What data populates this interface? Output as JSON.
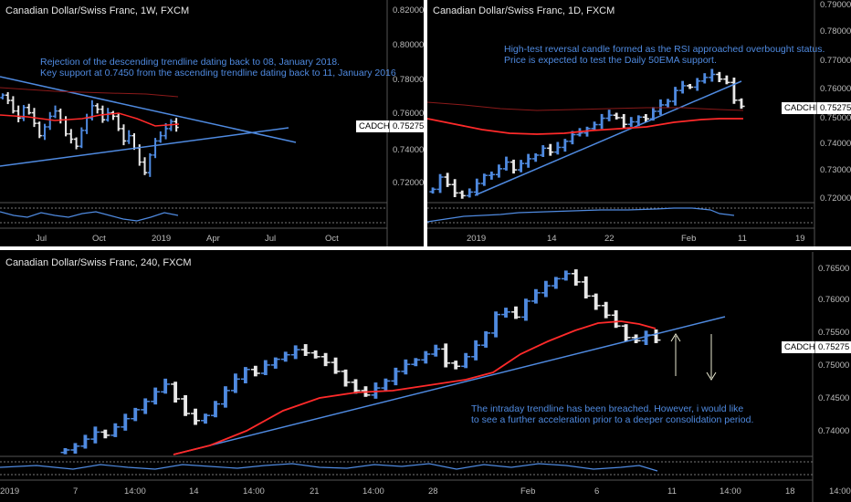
{
  "panels": {
    "weekly": {
      "title": "Canadian Dollar/Swiss Franc, 1W, FXCM",
      "note": "Rejection of the descending trendline dating back to 08, January 2018.\nKey support at 0.7450 from the ascending trendline dating back to 11, January 2016",
      "symbol": "CADCHF",
      "price": "0.75275",
      "y_ticks": [
        "0.82000",
        "0.80000",
        "0.78000",
        "0.76000",
        "0.74000",
        "0.72000"
      ],
      "x_ticks": [
        "Jul",
        "Oct",
        "2019",
        "Apr",
        "Jul",
        "Oct"
      ]
    },
    "daily": {
      "title": "Canadian Dollar/Swiss Franc, 1D, FXCM",
      "note": "High-test reversal candle formed as the RSI approached overbought status.\nPrice is expected to test the Daily 50EMA support.",
      "symbol": "CADCHF",
      "price": "0.75275",
      "y_ticks": [
        "0.79000",
        "0.78000",
        "0.77000",
        "0.76000",
        "0.75000",
        "0.74000",
        "0.73000",
        "0.72000"
      ],
      "x_ticks": [
        "2019",
        "14",
        "22",
        "Feb",
        "11",
        "19"
      ]
    },
    "h4": {
      "title": "Canadian Dollar/Swiss Franc, 240, FXCM",
      "note": "The intraday trendline has been breached. However, i would like\nto see a further acceleration prior to a deeper consolidation period.",
      "symbol": "CADCHF",
      "price": "0.75275",
      "y_ticks": [
        "0.76500",
        "0.76000",
        "0.75500",
        "0.75000",
        "0.74500",
        "0.74000"
      ],
      "x_ticks": [
        "2019",
        "7",
        "14:00",
        "14",
        "14:00",
        "21",
        "14:00",
        "28",
        "Feb",
        "6",
        "11",
        "14:00",
        "18",
        "14:00"
      ]
    }
  },
  "colors": {
    "bull": "#4f8ae0",
    "bear": "#e8e8e8",
    "trendline": "#4f8ae0",
    "ema": "#ff2a2a",
    "rsi": "#4f8ae0",
    "background": "#000000"
  },
  "chart_data": [
    {
      "type": "ohlc",
      "series": [
        {
          "name": "CADCHF",
          "close": [
            0.771,
            0.768,
            0.762,
            0.758,
            0.764,
            0.761,
            0.755,
            0.748,
            0.753,
            0.759,
            0.762,
            0.757,
            0.749,
            0.746,
            0.742,
            0.751,
            0.758,
            0.765,
            0.763,
            0.757,
            0.761,
            0.759,
            0.752,
            0.745,
            0.748,
            0.741,
            0.733,
            0.727,
            0.737,
            0.745,
            0.748,
            0.752,
            0.756,
            0.7527
          ]
        }
      ],
      "ylim": [
        0.71,
        0.825
      ]
    },
    {
      "type": "ohlc",
      "series": [
        {
          "name": "CADCHF",
          "close": [
            0.7228,
            0.7272,
            0.7245,
            0.7215,
            0.7205,
            0.7218,
            0.7249,
            0.7278,
            0.7281,
            0.7302,
            0.7326,
            0.7298,
            0.7321,
            0.7338,
            0.7351,
            0.7376,
            0.7362,
            0.7379,
            0.7401,
            0.7425,
            0.7431,
            0.7447,
            0.7461,
            0.7484,
            0.7495,
            0.7486,
            0.7462,
            0.7471,
            0.7488,
            0.7482,
            0.7509,
            0.7532,
            0.7545,
            0.7584,
            0.7601,
            0.7596,
            0.7618,
            0.7631,
            0.7642,
            0.7625,
            0.7613,
            0.7549,
            0.7527
          ]
        }
      ],
      "ylim": [
        0.718,
        0.791
      ]
    },
    {
      "type": "ohlc",
      "series": [
        {
          "name": "CADCHF",
          "close": [
            0.7355,
            0.7361,
            0.7372,
            0.7383,
            0.7378,
            0.7391,
            0.7404,
            0.7418,
            0.7431,
            0.7446,
            0.7458,
            0.7435,
            0.7412,
            0.7401,
            0.7409,
            0.7427,
            0.7448,
            0.7466,
            0.7481,
            0.7475,
            0.7488,
            0.7497,
            0.7504,
            0.7512,
            0.7507,
            0.7501,
            0.7492,
            0.7478,
            0.7461,
            0.7448,
            0.7441,
            0.7452,
            0.7463,
            0.7478,
            0.7489,
            0.7496,
            0.7505,
            0.7513,
            0.7491,
            0.7486,
            0.7501,
            0.7519,
            0.7538,
            0.7567,
            0.7571,
            0.7563,
            0.7588,
            0.7601,
            0.7612,
            0.7623,
            0.7631,
            0.7618,
            0.7596,
            0.7581,
            0.7566,
            0.7549,
            0.7531,
            0.7526,
            0.7535,
            0.7527
          ]
        }
      ],
      "ylim": [
        0.7345,
        0.7665
      ]
    }
  ]
}
